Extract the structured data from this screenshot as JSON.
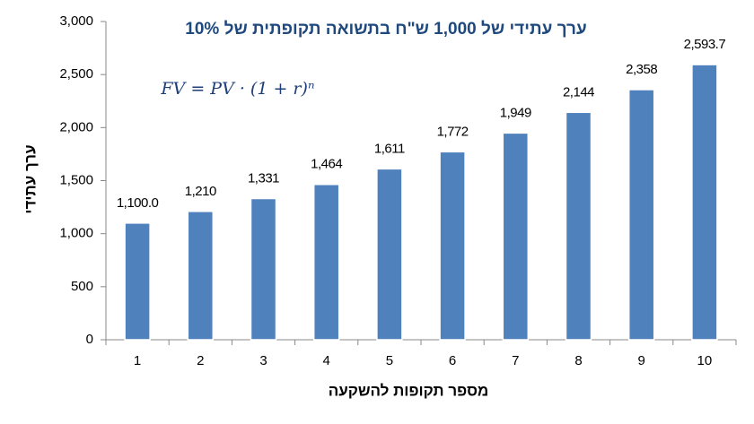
{
  "chart_data": {
    "type": "bar",
    "title": "ערך עתידי של 1,000 ש\"ח בתשואה תקופתית של 10%",
    "annotation": "FV = PV · (1 + r)ⁿ",
    "x_label": "מספר תקופות להשקעה",
    "y_label": "ערך עתידי",
    "categories": [
      "1",
      "2",
      "3",
      "4",
      "5",
      "6",
      "7",
      "8",
      "9",
      "10"
    ],
    "values": [
      1100.0,
      1210,
      1331,
      1464,
      1611,
      1772,
      1949,
      2144,
      2358,
      2593.7
    ],
    "value_labels": [
      "1,100.0",
      "1,210",
      "1,331",
      "1,464",
      "1,611",
      "1,772",
      "1,949",
      "2,144",
      "2,358",
      "2,593.7"
    ],
    "color": "#4f81bd",
    "ylim": [
      0,
      3000
    ],
    "yticks": [
      0,
      500,
      {
        "value": 1000,
        "label": "1,000"
      },
      {
        "value": 1500,
        "label": "1,500"
      },
      {
        "value": 2000,
        "label": "2,000"
      },
      {
        "value": 2500,
        "label": "2,500"
      },
      {
        "value": 3000,
        "label": "3,000"
      }
    ],
    "grid": false
  }
}
